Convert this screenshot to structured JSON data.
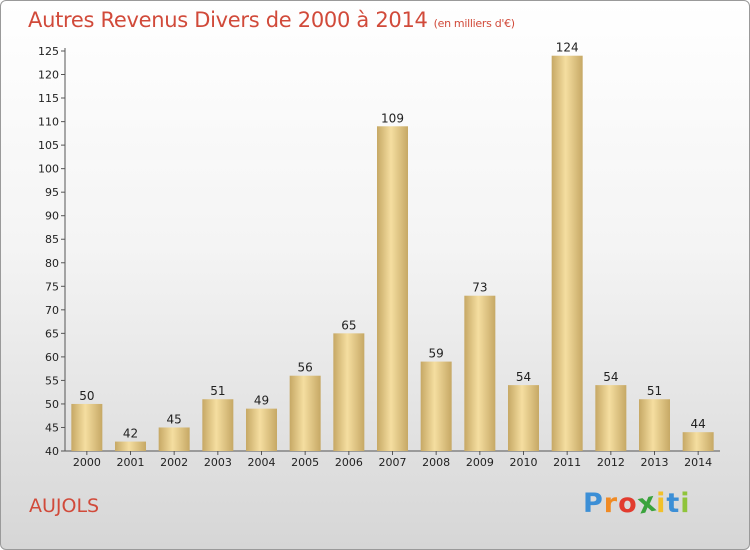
{
  "header": {
    "title": "Autres Revenus Divers de 2000 à 2014",
    "unit": "(en milliers d'€)"
  },
  "footer": {
    "place": "AUJOLS",
    "logo_letters": [
      "P",
      "r",
      "o",
      "x",
      "i",
      "t",
      "i"
    ]
  },
  "colors": {
    "title": "#d14a3a",
    "bar_light": "#f5dea0",
    "bar_dark": "#c6a865",
    "logo": [
      "#3c8fd6",
      "#f08a23",
      "#e23b2e",
      "#3aa33c",
      "#f2c12b",
      "#3c8fd6",
      "#8fc43b"
    ]
  },
  "chart_data": {
    "type": "bar",
    "title": "Autres Revenus Divers de 2000 à 2014",
    "xlabel": "",
    "ylabel": "",
    "categories": [
      "2000",
      "2001",
      "2002",
      "2003",
      "2004",
      "2005",
      "2006",
      "2007",
      "2008",
      "2009",
      "2010",
      "2011",
      "2012",
      "2013",
      "2014"
    ],
    "values": [
      50,
      42,
      45,
      51,
      49,
      56,
      65,
      109,
      59,
      73,
      54,
      124,
      54,
      51,
      44
    ],
    "ylim": [
      40,
      125
    ],
    "yticks": [
      40,
      45,
      50,
      55,
      60,
      65,
      70,
      75,
      80,
      85,
      90,
      95,
      100,
      105,
      110,
      115,
      120,
      125
    ],
    "grid": false
  }
}
